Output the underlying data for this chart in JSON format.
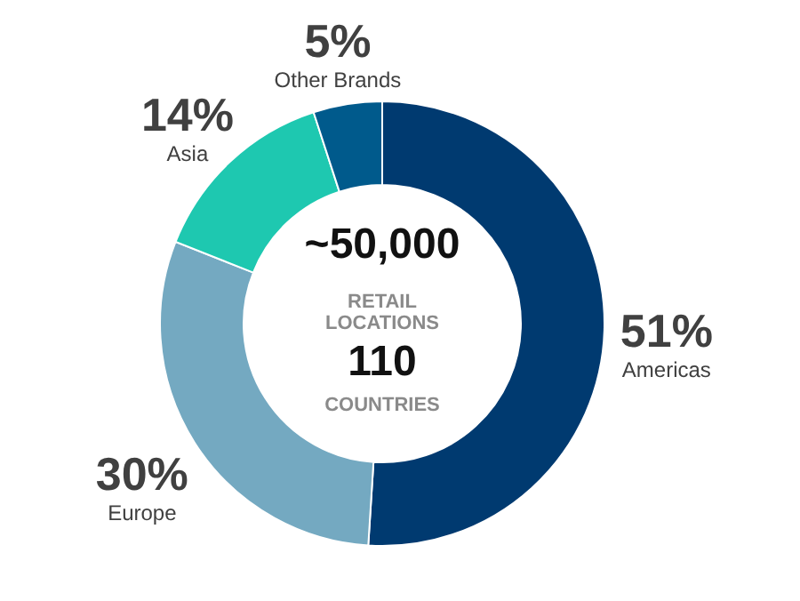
{
  "chart_data": {
    "type": "donut",
    "categories": [
      "Americas",
      "Europe",
      "Asia",
      "Other Brands"
    ],
    "values": [
      51,
      30,
      14,
      5
    ],
    "colors": [
      "#003a70",
      "#74a9c1",
      "#1ec8b0",
      "#005a8c"
    ],
    "value_labels": [
      "51%",
      "30%",
      "14%",
      "5%"
    ],
    "annotations": [
      "~50,000",
      "RETAIL LOCATIONS",
      "110",
      "COUNTRIES"
    ]
  }
}
